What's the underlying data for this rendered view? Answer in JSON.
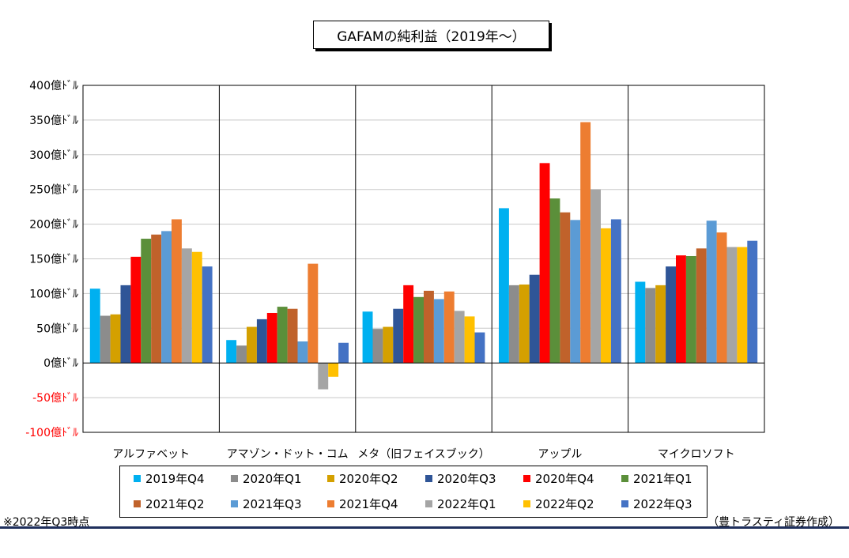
{
  "title": "GAFAMの純利益（2019年～）",
  "note_left": "※2022年Q3時点",
  "note_right": "（豊トラスティ証券作成）",
  "chart_data": {
    "type": "bar",
    "title": "GAFAMの純利益（2019年～）",
    "ylim": [
      -100,
      400
    ],
    "ytick_step": 50,
    "ytick_labels": [
      "400億ﾄﾞﾙ",
      "350億ﾄﾞﾙ",
      "300億ﾄﾞﾙ",
      "250億ﾄﾞﾙ",
      "200億ﾄﾞﾙ",
      "150億ﾄﾞﾙ",
      "100億ﾄﾞﾙ",
      "50億ﾄﾞﾙ",
      "0億ﾄﾞﾙ",
      "-50億ﾄﾞﾙ",
      "-100億ﾄﾞﾙ"
    ],
    "ytick_values": [
      400,
      350,
      300,
      250,
      200,
      150,
      100,
      50,
      0,
      -50,
      -100
    ],
    "negative_tick_color": "#ff0000",
    "grid": true,
    "legend_position": "bottom",
    "categories": [
      "アルファベット",
      "アマゾン・ドット・コム",
      "メタ（旧フェイスブック）",
      "アップル",
      "マイクロソフト"
    ],
    "series": [
      {
        "name": "2019年Q4",
        "color": "#00b0f0",
        "values": [
          107,
          33,
          74,
          223,
          117
        ]
      },
      {
        "name": "2020年Q1",
        "color": "#8c8c8c",
        "values": [
          68,
          25,
          49,
          112,
          108
        ]
      },
      {
        "name": "2020年Q2",
        "color": "#d4a000",
        "values": [
          70,
          52,
          52,
          113,
          112
        ]
      },
      {
        "name": "2020年Q3",
        "color": "#2f5597",
        "values": [
          112,
          63,
          78,
          127,
          139
        ]
      },
      {
        "name": "2020年Q4",
        "color": "#ff0000",
        "values": [
          153,
          72,
          112,
          288,
          155
        ]
      },
      {
        "name": "2021年Q1",
        "color": "#5b8f3a",
        "values": [
          179,
          81,
          95,
          237,
          154
        ]
      },
      {
        "name": "2021年Q2",
        "color": "#c0622b",
        "values": [
          185,
          78,
          104,
          217,
          165
        ]
      },
      {
        "name": "2021年Q3",
        "color": "#5b9bd5",
        "values": [
          190,
          31,
          92,
          206,
          205
        ]
      },
      {
        "name": "2021年Q4",
        "color": "#ed7d31",
        "values": [
          207,
          143,
          103,
          347,
          188
        ]
      },
      {
        "name": "2022年Q1",
        "color": "#a5a5a5",
        "values": [
          165,
          -38,
          75,
          250,
          167
        ]
      },
      {
        "name": "2022年Q2",
        "color": "#ffc000",
        "values": [
          160,
          -20,
          67,
          194,
          167
        ]
      },
      {
        "name": "2022年Q3",
        "color": "#4472c4",
        "values": [
          139,
          29,
          44,
          207,
          176
        ]
      }
    ]
  }
}
